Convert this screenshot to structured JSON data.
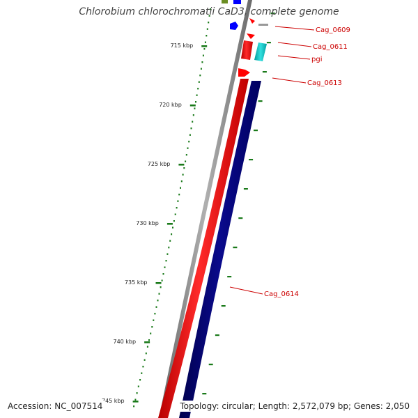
{
  "title": "Chlorobium chlorochromatii CaD3, complete genome",
  "footer": {
    "accession": "Accession: NC_007514",
    "summary": "Topology: circular; Length: 2,572,079 bp; Genes: 2,050"
  },
  "scale_ticks": [
    {
      "kbp": 715,
      "label": "715 kbp"
    },
    {
      "kbp": 720,
      "label": "720 kbp"
    },
    {
      "kbp": 725,
      "label": "725 kbp"
    },
    {
      "kbp": 730,
      "label": "730 kbp"
    },
    {
      "kbp": 735,
      "label": "735 kbp"
    },
    {
      "kbp": 740,
      "label": "740 kbp"
    },
    {
      "kbp": 745,
      "label": "745 kbp"
    }
  ],
  "gene_labels": [
    {
      "name": "Cag_0609",
      "color": "#cc0000"
    },
    {
      "name": "Cag_0611",
      "color": "#cc0000"
    },
    {
      "name": "pgi",
      "color": "#cc0000"
    },
    {
      "name": "Cag_0613",
      "color": "#cc0000"
    },
    {
      "name": "Cag_0614",
      "color": "#cc0000"
    }
  ],
  "colors": {
    "backbone": "#888888",
    "forward_cds": "#ff0000",
    "reverse_cds": "#000080",
    "trna": "#00b4b4",
    "other_blue": "#0000ff",
    "other_green": "#6b8e23",
    "scale": "#1a7a1a",
    "label": "#cc0000"
  }
}
